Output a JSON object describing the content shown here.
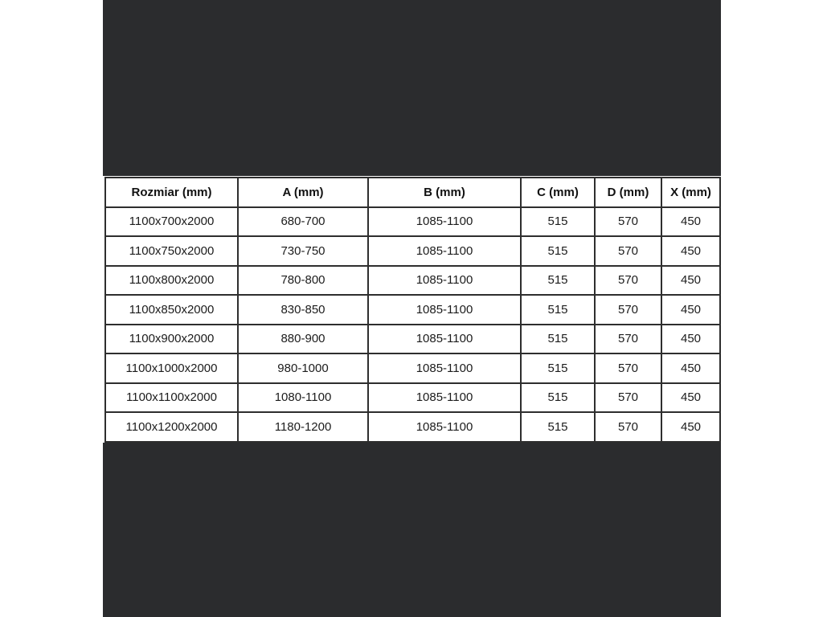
{
  "page": {
    "background_color": "#ffffff",
    "panel_color": "#2b2c2e",
    "table_border_color": "#2e2e2e"
  },
  "table": {
    "columns": [
      "Rozmiar (mm)",
      "A (mm)",
      "B (mm)",
      "C (mm)",
      "D (mm)",
      "X (mm)"
    ],
    "rows": [
      [
        "1100x700x2000",
        "680-700",
        "1085-1100",
        "515",
        "570",
        "450"
      ],
      [
        "1100x750x2000",
        "730-750",
        "1085-1100",
        "515",
        "570",
        "450"
      ],
      [
        "1100x800x2000",
        "780-800",
        "1085-1100",
        "515",
        "570",
        "450"
      ],
      [
        "1100x850x2000",
        "830-850",
        "1085-1100",
        "515",
        "570",
        "450"
      ],
      [
        "1100x900x2000",
        "880-900",
        "1085-1100",
        "515",
        "570",
        "450"
      ],
      [
        "1100x1000x2000",
        "980-1000",
        "1085-1100",
        "515",
        "570",
        "450"
      ],
      [
        "1100x1100x2000",
        "1080-1100",
        "1085-1100",
        "515",
        "570",
        "450"
      ],
      [
        "1100x1200x2000",
        "1180-1200",
        "1085-1100",
        "515",
        "570",
        "450"
      ]
    ]
  }
}
